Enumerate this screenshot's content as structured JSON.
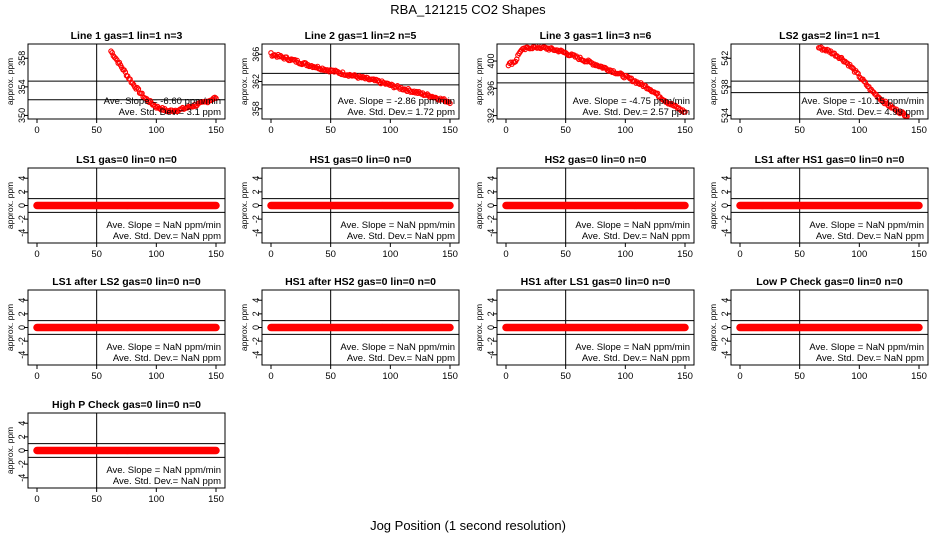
{
  "title": "RBA_121215  CO2 Shapes",
  "xlabel": "Jog Position (1 second resolution)",
  "colors": {
    "points": "#ff0000",
    "axis": "#000000"
  },
  "chart_data": [
    {
      "type": "scatter",
      "title": "Line 1 gas=1 lin=1 n=3",
      "ylabel": "approx. ppm",
      "xlim": [
        0,
        150
      ],
      "ylim": [
        349.5,
        360
      ],
      "xticks": [
        0,
        50,
        100,
        150
      ],
      "yticks": [
        350,
        354,
        358
      ],
      "vline": 50,
      "hlines": [
        352.2,
        354.8
      ],
      "slope_text": "Ave. Slope = -6.60 ppm/min",
      "std_text": "Ave. Std. Dev.=  3.1  ppm",
      "series": [
        {
          "x": [
            62,
            70,
            80,
            90,
            100,
            110,
            120,
            130,
            140,
            150
          ],
          "y": [
            359,
            357,
            354.5,
            352.5,
            351.2,
            350.6,
            350.8,
            351.3,
            351.8,
            352.5
          ]
        }
      ]
    },
    {
      "type": "scatter",
      "title": "Line 2 gas=1 lin=2 n=5",
      "ylabel": "approx. ppm",
      "xlim": [
        0,
        150
      ],
      "ylim": [
        356.5,
        367.5
      ],
      "xticks": [
        0,
        50,
        100,
        150
      ],
      "yticks": [
        358,
        362,
        366
      ],
      "vline": 50,
      "hlines": [
        361.5,
        363.2
      ],
      "slope_text": "Ave. Slope =  -2.86  ppm/min",
      "std_text": "Ave. Std. Dev.=  1.72  ppm",
      "series": [
        {
          "x": [
            0,
            15,
            30,
            45,
            60,
            75,
            90,
            105,
            120,
            135,
            150
          ],
          "y": [
            366,
            365.3,
            364.5,
            363.8,
            363.2,
            362.6,
            362,
            361.2,
            360.5,
            359.8,
            359
          ]
        }
      ]
    },
    {
      "type": "scatter",
      "title": "Line 3 gas=1 lin=3 n=6",
      "ylabel": "approx. ppm",
      "xlim": [
        0,
        150
      ],
      "ylim": [
        391.5,
        402.5
      ],
      "xticks": [
        0,
        50,
        100,
        150
      ],
      "yticks": [
        392,
        396,
        400
      ],
      "vline": 50,
      "hlines": [
        396.8,
        398.2
      ],
      "slope_text": "Ave. Slope =  -4.75  ppm/min",
      "std_text": "Ave. Std. Dev.=  2.57  ppm",
      "series": [
        {
          "x": [
            2,
            8,
            12,
            20,
            30,
            45,
            60,
            75,
            90,
            105,
            120,
            135,
            150
          ],
          "y": [
            399.5,
            400,
            401.5,
            402,
            402,
            401.5,
            400.5,
            399.5,
            398.5,
            397.3,
            396,
            394,
            392.5
          ]
        }
      ]
    },
    {
      "type": "scatter",
      "title": "LS2 gas=2 lin=1 n=1",
      "ylabel": "approx. ppm",
      "xlim": [
        0,
        150
      ],
      "ylim": [
        533.5,
        544
      ],
      "xticks": [
        0,
        50,
        100,
        150
      ],
      "yticks": [
        534,
        538,
        542
      ],
      "vline": 50,
      "hlines": [
        537.2,
        538.8
      ],
      "slope_text": "Ave. Slope = -10.15  ppm/min",
      "std_text": "Ave. Std. Dev.=  4.99  ppm",
      "series": [
        {
          "x": [
            66,
            75,
            85,
            92,
            100,
            110,
            120,
            130,
            140
          ],
          "y": [
            543.5,
            543,
            542,
            541,
            539.5,
            537.5,
            536,
            534.8,
            534
          ]
        }
      ]
    },
    {
      "type": "scatter",
      "title": "LS1 gas=0 lin=0 n=0",
      "ylabel": "approx. ppm",
      "xlim": [
        0,
        150
      ],
      "ylim": [
        -5.5,
        5.5
      ],
      "xticks": [
        0,
        50,
        100,
        150
      ],
      "yticks": [
        -4,
        -2,
        0,
        2,
        4
      ],
      "vline": 50,
      "hlines": [
        1,
        -1
      ],
      "slope_text": "Ave. Slope =  NaN  ppm/min",
      "std_text": "Ave. Std. Dev.=  NaN  ppm",
      "series": [
        {
          "x": [
            0,
            150
          ],
          "y": [
            0,
            0
          ]
        }
      ]
    },
    {
      "type": "scatter",
      "title": "HS1 gas=0 lin=0 n=0",
      "ylabel": "approx. ppm",
      "xlim": [
        0,
        150
      ],
      "ylim": [
        -5.5,
        5.5
      ],
      "xticks": [
        0,
        50,
        100,
        150
      ],
      "yticks": [
        -4,
        -2,
        0,
        2,
        4
      ],
      "vline": 50,
      "hlines": [
        1,
        -1
      ],
      "slope_text": "Ave. Slope =  NaN  ppm/min",
      "std_text": "Ave. Std. Dev.=  NaN  ppm",
      "series": [
        {
          "x": [
            0,
            150
          ],
          "y": [
            0,
            0
          ]
        }
      ]
    },
    {
      "type": "scatter",
      "title": "HS2 gas=0 lin=0 n=0",
      "ylabel": "approx. ppm",
      "xlim": [
        0,
        150
      ],
      "ylim": [
        -5.5,
        5.5
      ],
      "xticks": [
        0,
        50,
        100,
        150
      ],
      "yticks": [
        -4,
        -2,
        0,
        2,
        4
      ],
      "vline": 50,
      "hlines": [
        1,
        -1
      ],
      "slope_text": "Ave. Slope =  NaN  ppm/min",
      "std_text": "Ave. Std. Dev.=  NaN  ppm",
      "series": [
        {
          "x": [
            0,
            150
          ],
          "y": [
            0,
            0
          ]
        }
      ]
    },
    {
      "type": "scatter",
      "title": "LS1 after HS1 gas=0 lin=0 n=0",
      "ylabel": "approx. ppm",
      "xlim": [
        0,
        150
      ],
      "ylim": [
        -5.5,
        5.5
      ],
      "xticks": [
        0,
        50,
        100,
        150
      ],
      "yticks": [
        -4,
        -2,
        0,
        2,
        4
      ],
      "vline": 50,
      "hlines": [
        1,
        -1
      ],
      "slope_text": "Ave. Slope =  NaN  ppm/min",
      "std_text": "Ave. Std. Dev.=  NaN  ppm",
      "series": [
        {
          "x": [
            0,
            150
          ],
          "y": [
            0,
            0
          ]
        }
      ]
    },
    {
      "type": "scatter",
      "title": "LS1 after LS2 gas=0 lin=0 n=0",
      "ylabel": "approx. ppm",
      "xlim": [
        0,
        150
      ],
      "ylim": [
        -5.5,
        5.5
      ],
      "xticks": [
        0,
        50,
        100,
        150
      ],
      "yticks": [
        -4,
        -2,
        0,
        2,
        4
      ],
      "vline": 50,
      "hlines": [
        1,
        -1
      ],
      "slope_text": "Ave. Slope =  NaN  ppm/min",
      "std_text": "Ave. Std. Dev.=  NaN  ppm",
      "series": [
        {
          "x": [
            0,
            150
          ],
          "y": [
            0,
            0
          ]
        }
      ]
    },
    {
      "type": "scatter",
      "title": "HS1 after HS2 gas=0 lin=0 n=0",
      "ylabel": "approx. ppm",
      "xlim": [
        0,
        150
      ],
      "ylim": [
        -5.5,
        5.5
      ],
      "xticks": [
        0,
        50,
        100,
        150
      ],
      "yticks": [
        -4,
        -2,
        0,
        2,
        4
      ],
      "vline": 50,
      "hlines": [
        1,
        -1
      ],
      "slope_text": "Ave. Slope =  NaN  ppm/min",
      "std_text": "Ave. Std. Dev.=  NaN  ppm",
      "series": [
        {
          "x": [
            0,
            150
          ],
          "y": [
            0,
            0
          ]
        }
      ]
    },
    {
      "type": "scatter",
      "title": "HS1 after LS1 gas=0 lin=0 n=0",
      "ylabel": "approx. ppm",
      "xlim": [
        0,
        150
      ],
      "ylim": [
        -5.5,
        5.5
      ],
      "xticks": [
        0,
        50,
        100,
        150
      ],
      "yticks": [
        -4,
        -2,
        0,
        2,
        4
      ],
      "vline": 50,
      "hlines": [
        1,
        -1
      ],
      "slope_text": "Ave. Slope =  NaN  ppm/min",
      "std_text": "Ave. Std. Dev.=  NaN  ppm",
      "series": [
        {
          "x": [
            0,
            150
          ],
          "y": [
            0,
            0
          ]
        }
      ]
    },
    {
      "type": "scatter",
      "title": "Low P Check gas=0 lin=0 n=0",
      "ylabel": "approx. ppm",
      "xlim": [
        0,
        150
      ],
      "ylim": [
        -5.5,
        5.5
      ],
      "xticks": [
        0,
        50,
        100,
        150
      ],
      "yticks": [
        -4,
        -2,
        0,
        2,
        4
      ],
      "vline": 50,
      "hlines": [
        1,
        -1
      ],
      "slope_text": "Ave. Slope =  NaN  ppm/min",
      "std_text": "Ave. Std. Dev.=  NaN  ppm",
      "series": [
        {
          "x": [
            0,
            150
          ],
          "y": [
            0,
            0
          ]
        }
      ]
    },
    {
      "type": "scatter",
      "title": "High P Check gas=0 lin=0 n=0",
      "ylabel": "approx. ppm",
      "xlim": [
        0,
        150
      ],
      "ylim": [
        -5.5,
        5.5
      ],
      "xticks": [
        0,
        50,
        100,
        150
      ],
      "yticks": [
        -4,
        -2,
        0,
        2,
        4
      ],
      "vline": 50,
      "hlines": [
        1,
        -1
      ],
      "slope_text": "Ave. Slope =  NaN  ppm/min",
      "std_text": "Ave. Std. Dev.=  NaN  ppm",
      "series": [
        {
          "x": [
            0,
            150
          ],
          "y": [
            0,
            0
          ]
        }
      ]
    }
  ]
}
